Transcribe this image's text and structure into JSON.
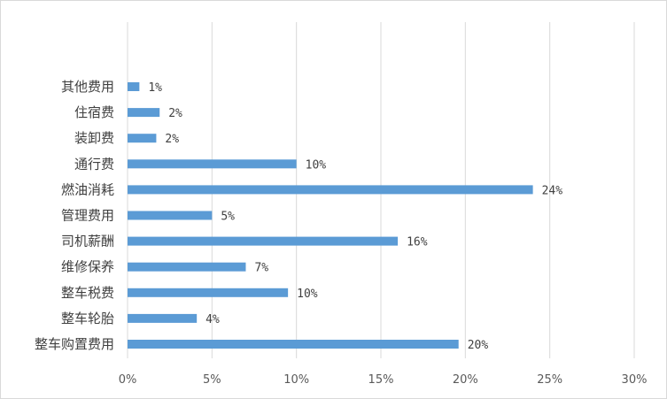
{
  "chart_data": {
    "type": "bar",
    "orientation": "horizontal",
    "categories": [
      "其他费用",
      "住宿费",
      "装卸费",
      "通行费",
      "燃油消耗",
      "管理费用",
      "司机薪酬",
      "维修保养",
      "整车税费",
      "整车轮胎",
      "整车购置费用"
    ],
    "values": [
      0.7,
      1.9,
      1.7,
      10.0,
      24.0,
      5.0,
      16.0,
      7.0,
      9.5,
      4.1,
      19.6
    ],
    "data_labels": [
      "1%",
      "2%",
      "2%",
      "10%",
      "24%",
      "5%",
      "16%",
      "7%",
      "10%",
      "4%",
      "20%"
    ],
    "x_ticks": [
      "0%",
      "5%",
      "10%",
      "15%",
      "20%",
      "25%",
      "30%"
    ],
    "xlim": [
      0,
      30
    ],
    "grid": "vertical",
    "legend": "none",
    "bar_color": "#5b9bd5",
    "grid_color": "#d9d9d9",
    "title": "",
    "xlabel": "",
    "ylabel": ""
  }
}
